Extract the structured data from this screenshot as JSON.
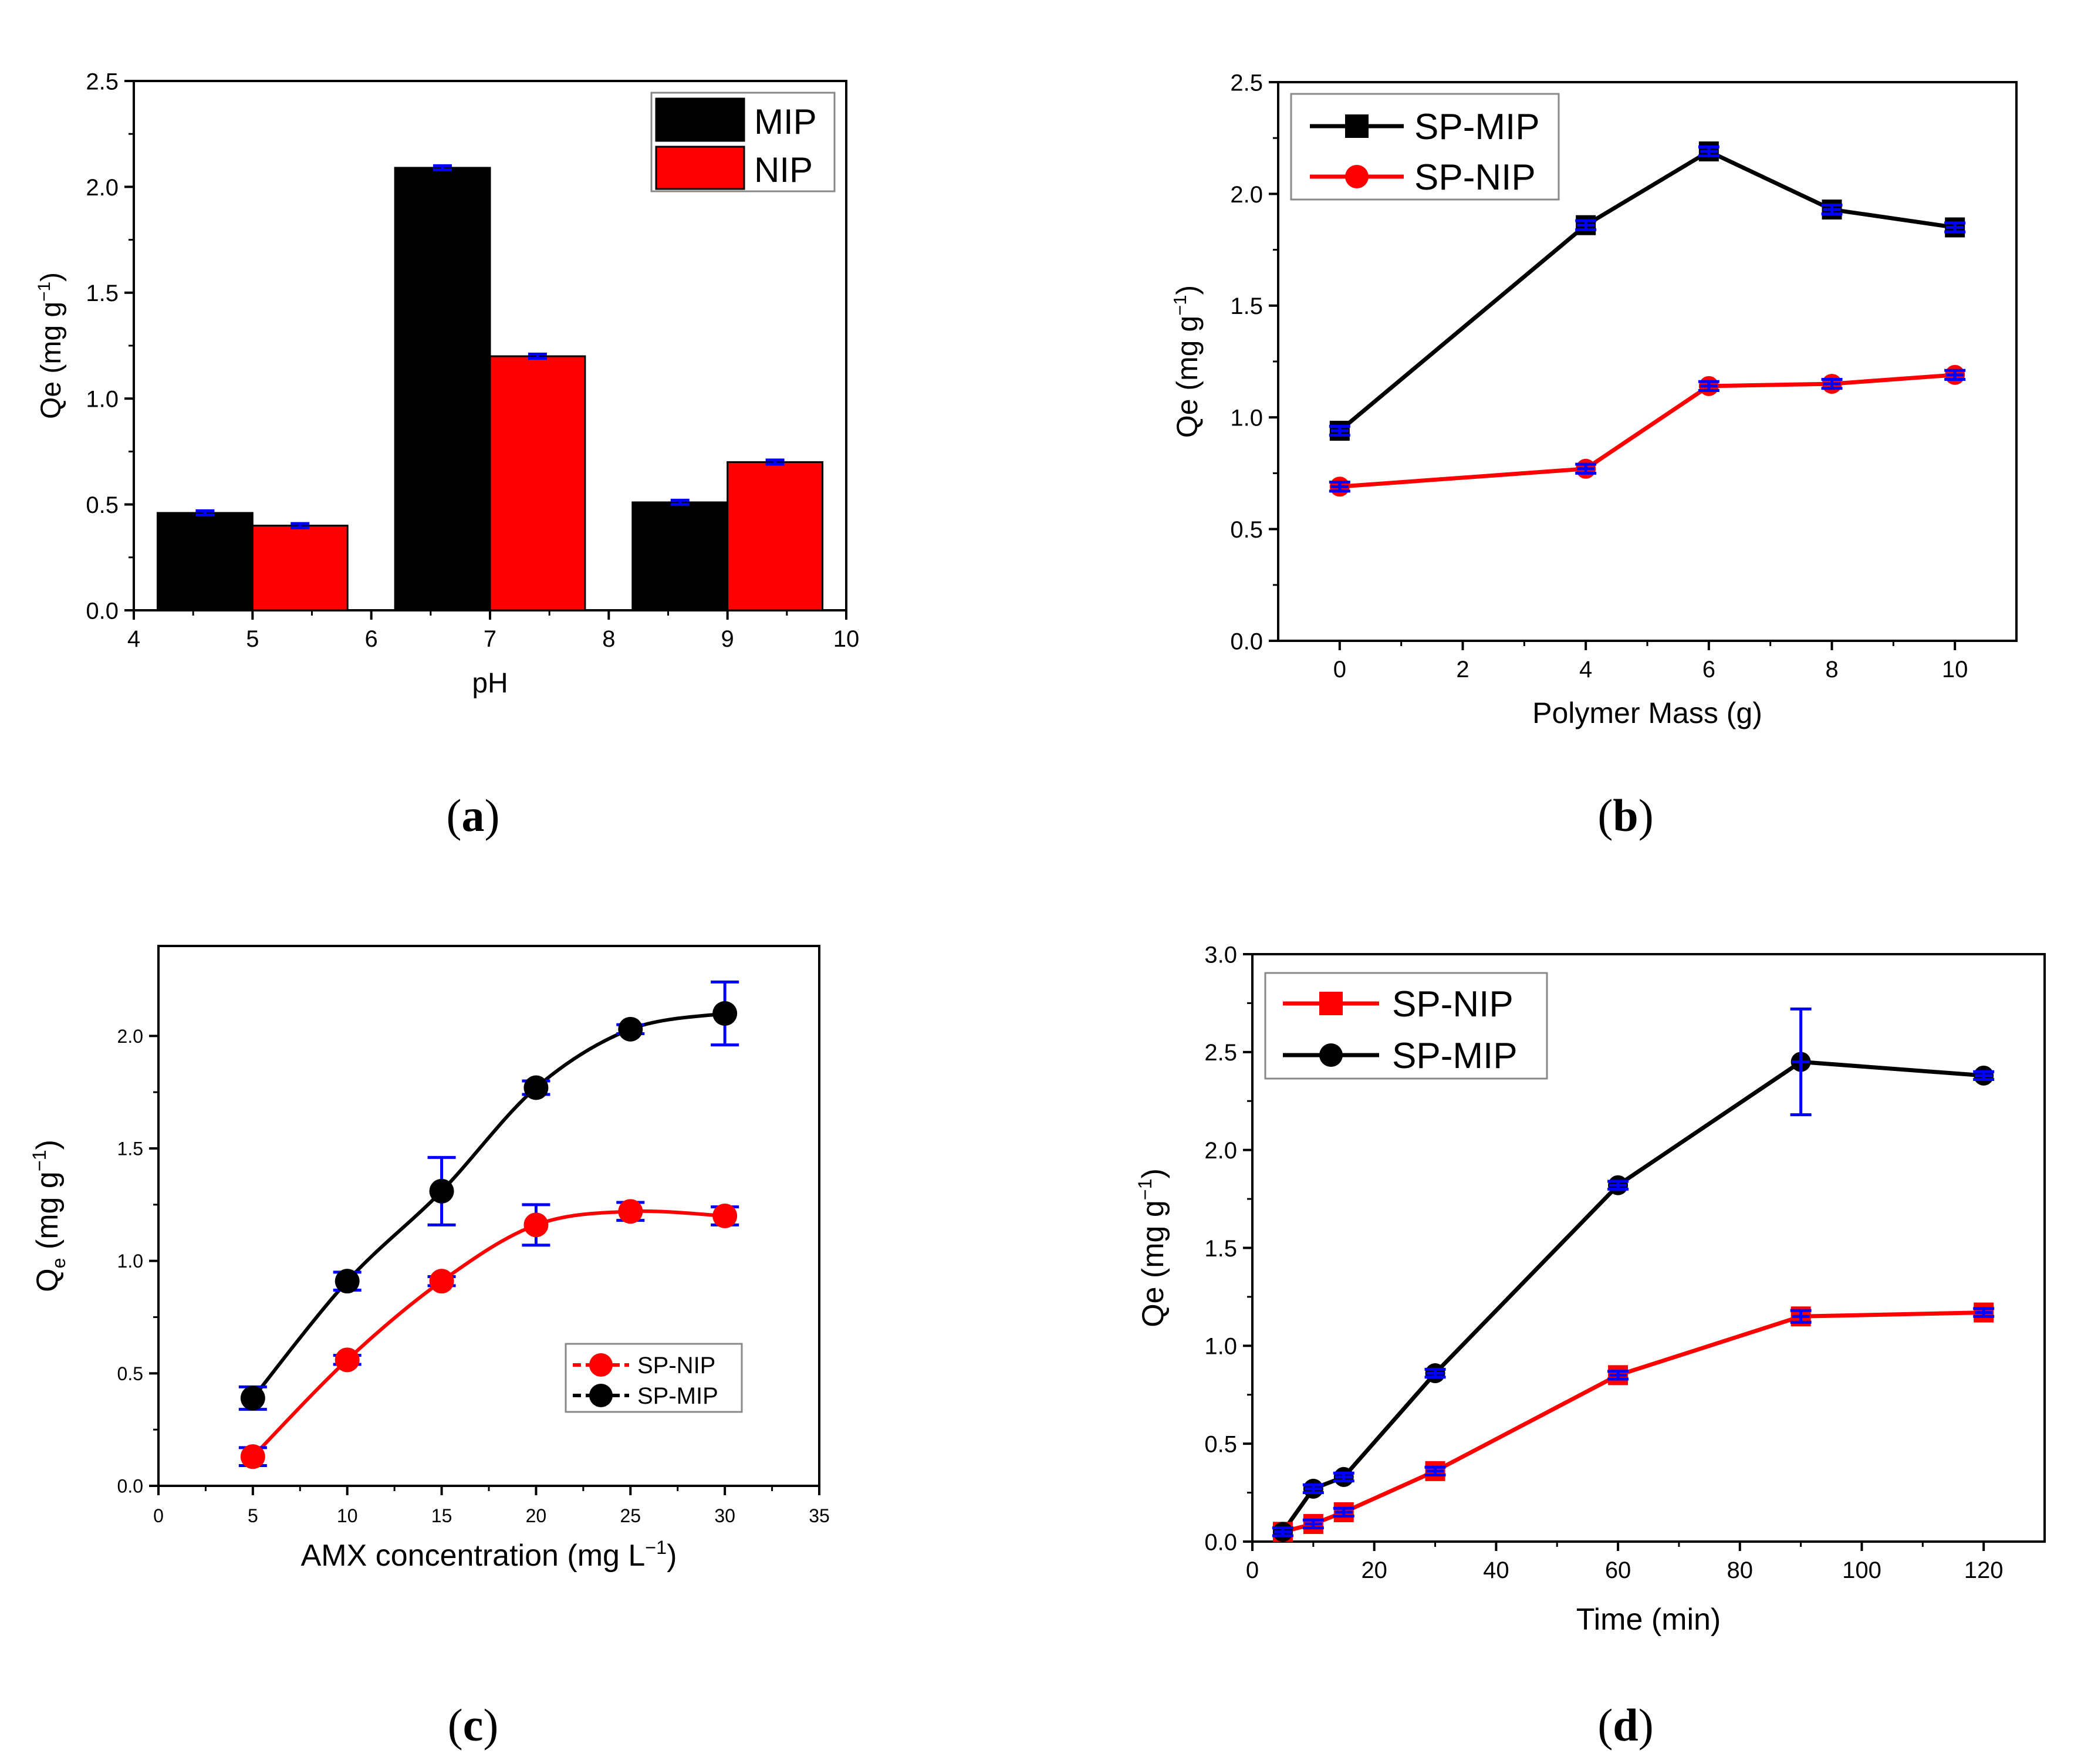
{
  "chart_data": [
    {
      "id": "a",
      "caption_letter": "a",
      "type": "bar",
      "xlabel": "pH",
      "ylabel": "Qe (mg g",
      "ylabel_sup": "−1",
      "ylabel_end": ")",
      "xlim": [
        4,
        10
      ],
      "ylim": [
        0,
        2.5
      ],
      "xticks": [
        4,
        5,
        6,
        7,
        8,
        9,
        10
      ],
      "yticks": [
        0.0,
        0.5,
        1.0,
        1.5,
        2.0,
        2.5
      ],
      "categories": [
        5,
        7,
        9
      ],
      "legend_position": "top-right",
      "series": [
        {
          "name": "MIP",
          "color": "#000000",
          "values": [
            0.46,
            2.09,
            0.51
          ],
          "errors": [
            0.01,
            0.01,
            0.01
          ]
        },
        {
          "name": "NIP",
          "color": "#ff0000",
          "values": [
            0.4,
            1.2,
            0.7
          ],
          "errors": [
            0.01,
            0.01,
            0.01
          ]
        }
      ]
    },
    {
      "id": "b",
      "caption_letter": "b",
      "type": "line",
      "xlabel": "Polymer Mass (g)",
      "ylabel": "Qe (mg g",
      "ylabel_sup": "−1",
      "ylabel_end": ")",
      "xlim": [
        -1,
        11
      ],
      "ylim": [
        0,
        2.5
      ],
      "xticks": [
        0,
        2,
        4,
        6,
        8,
        10
      ],
      "yticks": [
        0.0,
        0.5,
        1.0,
        1.5,
        2.0,
        2.5
      ],
      "x": [
        0,
        4,
        6,
        8,
        10
      ],
      "legend_position": "top-left",
      "series": [
        {
          "name": "SP-MIP",
          "marker": "square",
          "color": "#000000",
          "values": [
            0.94,
            1.86,
            2.19,
            1.93,
            1.85
          ],
          "errors": [
            0.02,
            0.02,
            0.02,
            0.02,
            0.02
          ]
        },
        {
          "name": "SP-NIP",
          "marker": "circle",
          "color": "#ff0000",
          "values": [
            0.69,
            0.77,
            1.14,
            1.15,
            1.19
          ],
          "errors": [
            0.02,
            0.02,
            0.02,
            0.02,
            0.02
          ]
        }
      ]
    },
    {
      "id": "c",
      "caption_letter": "c",
      "type": "scatter",
      "xlabel": "AMX concentration (mg L",
      "xlabel_sup": "−1",
      "xlabel_end": ")",
      "ylabel": "Q",
      "ylabel_sub": "e",
      "ylabel_mid": " (mg g",
      "ylabel_sup": "−1",
      "ylabel_end": ")",
      "xlim": [
        0,
        35
      ],
      "ylim": [
        0,
        2.4
      ],
      "xticks": [
        0,
        5,
        10,
        15,
        20,
        25,
        30,
        35
      ],
      "yticks": [
        0.0,
        0.5,
        1.0,
        1.5,
        2.0
      ],
      "x": [
        5,
        10,
        15,
        20,
        25,
        30
      ],
      "legend_position": "bottom-right",
      "series": [
        {
          "name": "SP-NIP",
          "marker": "circle",
          "color": "#ff0000",
          "values": [
            0.13,
            0.56,
            0.91,
            1.16,
            1.22,
            1.2
          ],
          "errors": [
            0.04,
            0.02,
            0.02,
            0.09,
            0.04,
            0.04
          ]
        },
        {
          "name": "SP-MIP",
          "marker": "circle",
          "color": "#000000",
          "values": [
            0.39,
            0.91,
            1.31,
            1.77,
            2.03,
            2.1
          ],
          "errors": [
            0.05,
            0.04,
            0.15,
            0.03,
            0.02,
            0.14
          ]
        }
      ]
    },
    {
      "id": "d",
      "caption_letter": "d",
      "type": "line",
      "xlabel": "Time (min)",
      "ylabel": "Qe (mg g",
      "ylabel_sup": "−1",
      "ylabel_end": ")",
      "xlim": [
        0,
        130
      ],
      "ylim": [
        0,
        3.0
      ],
      "xticks": [
        0,
        20,
        40,
        60,
        80,
        100,
        120
      ],
      "yticks": [
        0.0,
        0.5,
        1.0,
        1.5,
        2.0,
        2.5,
        3.0
      ],
      "x": [
        5,
        10,
        15,
        30,
        60,
        90,
        120
      ],
      "legend_position": "top-left",
      "series": [
        {
          "name": "SP-NIP",
          "marker": "square",
          "color": "#ff0000",
          "values": [
            0.05,
            0.09,
            0.15,
            0.36,
            0.85,
            1.15,
            1.17
          ],
          "errors": [
            0.02,
            0.02,
            0.02,
            0.02,
            0.02,
            0.03,
            0.02
          ]
        },
        {
          "name": "SP-MIP",
          "marker": "circle",
          "color": "#000000",
          "values": [
            0.05,
            0.27,
            0.33,
            0.86,
            1.82,
            2.45,
            2.38
          ],
          "errors": [
            0.02,
            0.02,
            0.02,
            0.02,
            0.02,
            0.27,
            0.02
          ]
        }
      ]
    }
  ],
  "error_bar_color": "#0000ff"
}
